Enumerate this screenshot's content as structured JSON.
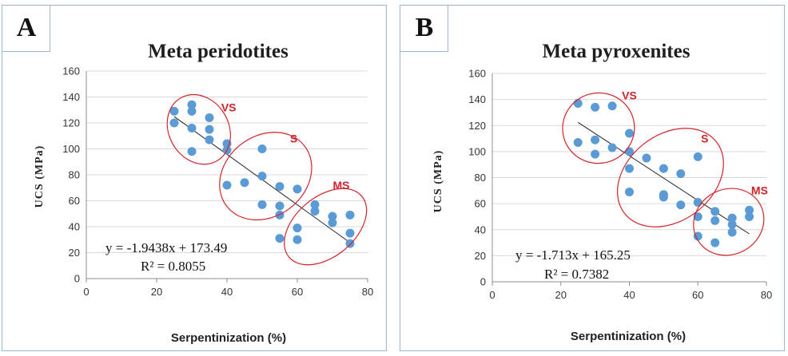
{
  "chart_data": [
    {
      "type": "scatter",
      "panel_label": "A",
      "title": "Meta peridotites",
      "xlabel": "Serpentinization (%)",
      "ylabel": "UCS (MPa)",
      "xlim": [
        0,
        80
      ],
      "ylim": [
        0,
        160
      ],
      "x_ticks": [
        0,
        20,
        40,
        60,
        80
      ],
      "y_ticks": [
        0,
        20,
        40,
        60,
        80,
        100,
        120,
        140,
        160
      ],
      "grid": "horizontal",
      "marker_color": "#5b9bd5",
      "points": [
        {
          "x": 25,
          "y": 129
        },
        {
          "x": 25,
          "y": 120
        },
        {
          "x": 30,
          "y": 134
        },
        {
          "x": 30,
          "y": 129
        },
        {
          "x": 30,
          "y": 116
        },
        {
          "x": 30,
          "y": 98
        },
        {
          "x": 35,
          "y": 124
        },
        {
          "x": 35,
          "y": 115
        },
        {
          "x": 35,
          "y": 107
        },
        {
          "x": 40,
          "y": 104
        },
        {
          "x": 40,
          "y": 99
        },
        {
          "x": 40,
          "y": 72
        },
        {
          "x": 45,
          "y": 74
        },
        {
          "x": 50,
          "y": 100
        },
        {
          "x": 50,
          "y": 79
        },
        {
          "x": 50,
          "y": 57
        },
        {
          "x": 55,
          "y": 71
        },
        {
          "x": 55,
          "y": 56
        },
        {
          "x": 55,
          "y": 49
        },
        {
          "x": 55,
          "y": 31
        },
        {
          "x": 60,
          "y": 69
        },
        {
          "x": 60,
          "y": 39
        },
        {
          "x": 60,
          "y": 30
        },
        {
          "x": 65,
          "y": 57
        },
        {
          "x": 65,
          "y": 52
        },
        {
          "x": 70,
          "y": 48
        },
        {
          "x": 70,
          "y": 43
        },
        {
          "x": 75,
          "y": 49
        },
        {
          "x": 75,
          "y": 35
        },
        {
          "x": 75,
          "y": 27
        }
      ],
      "trendline": {
        "slope": -1.9438,
        "intercept": 173.49,
        "x_range": [
          25,
          75
        ]
      },
      "equation": "y = -1.9438x + 173.49",
      "r_squared": "R² = 0.8055",
      "regions": [
        {
          "label": "VS",
          "center": [
            32,
            115
          ],
          "rx": 8.5,
          "ry": 28,
          "angle": -30,
          "label_pos": [
            40.5,
            129
          ]
        },
        {
          "label": "S",
          "center": [
            51,
            79
          ],
          "rx": 14,
          "ry": 31,
          "angle": -38,
          "label_pos": [
            59,
            105
          ]
        },
        {
          "label": "MS",
          "center": [
            68,
            40
          ],
          "rx": 13.5,
          "ry": 23,
          "angle": -40,
          "label_pos": [
            72.5,
            69
          ]
        }
      ]
    },
    {
      "type": "scatter",
      "panel_label": "B",
      "title": "Meta pyroxenites",
      "xlabel": "Serpentinization (%)",
      "ylabel": "UCS (MPa)",
      "xlim": [
        0,
        80
      ],
      "ylim": [
        0,
        160
      ],
      "x_ticks": [
        0,
        20,
        40,
        60,
        80
      ],
      "y_ticks": [
        0,
        20,
        40,
        60,
        80,
        100,
        120,
        140,
        160
      ],
      "grid": "horizontal",
      "marker_color": "#5b9bd5",
      "points": [
        {
          "x": 25,
          "y": 137
        },
        {
          "x": 25,
          "y": 107
        },
        {
          "x": 30,
          "y": 134
        },
        {
          "x": 30,
          "y": 109
        },
        {
          "x": 30,
          "y": 98
        },
        {
          "x": 35,
          "y": 135
        },
        {
          "x": 35,
          "y": 103
        },
        {
          "x": 40,
          "y": 114
        },
        {
          "x": 40,
          "y": 100
        },
        {
          "x": 40,
          "y": 87
        },
        {
          "x": 40,
          "y": 69
        },
        {
          "x": 45,
          "y": 95
        },
        {
          "x": 50,
          "y": 87
        },
        {
          "x": 50,
          "y": 67
        },
        {
          "x": 50,
          "y": 65
        },
        {
          "x": 55,
          "y": 83
        },
        {
          "x": 55,
          "y": 59
        },
        {
          "x": 60,
          "y": 96
        },
        {
          "x": 60,
          "y": 61
        },
        {
          "x": 60,
          "y": 50
        },
        {
          "x": 60,
          "y": 35
        },
        {
          "x": 65,
          "y": 54
        },
        {
          "x": 65,
          "y": 47
        },
        {
          "x": 65,
          "y": 30
        },
        {
          "x": 70,
          "y": 49
        },
        {
          "x": 70,
          "y": 44
        },
        {
          "x": 70,
          "y": 38
        },
        {
          "x": 75,
          "y": 55
        },
        {
          "x": 75,
          "y": 50
        }
      ],
      "trendline": {
        "slope": -1.713,
        "intercept": 165.25,
        "x_range": [
          25,
          75
        ]
      },
      "equation": "y = -1.713x + 165.25",
      "r_squared": "R² = 0.7382",
      "regions": [
        {
          "label": "VS",
          "center": [
            31,
            118
          ],
          "rx": 10.5,
          "ry": 27,
          "angle": -15,
          "label_pos": [
            40,
            140
          ]
        },
        {
          "label": "S",
          "center": [
            52,
            80
          ],
          "rx": 17,
          "ry": 33,
          "angle": -38,
          "label_pos": [
            62,
            107
          ]
        },
        {
          "label": "MS",
          "center": [
            69,
            46
          ],
          "rx": 10.5,
          "ry": 25,
          "angle": -30,
          "label_pos": [
            78,
            67
          ]
        }
      ]
    }
  ]
}
